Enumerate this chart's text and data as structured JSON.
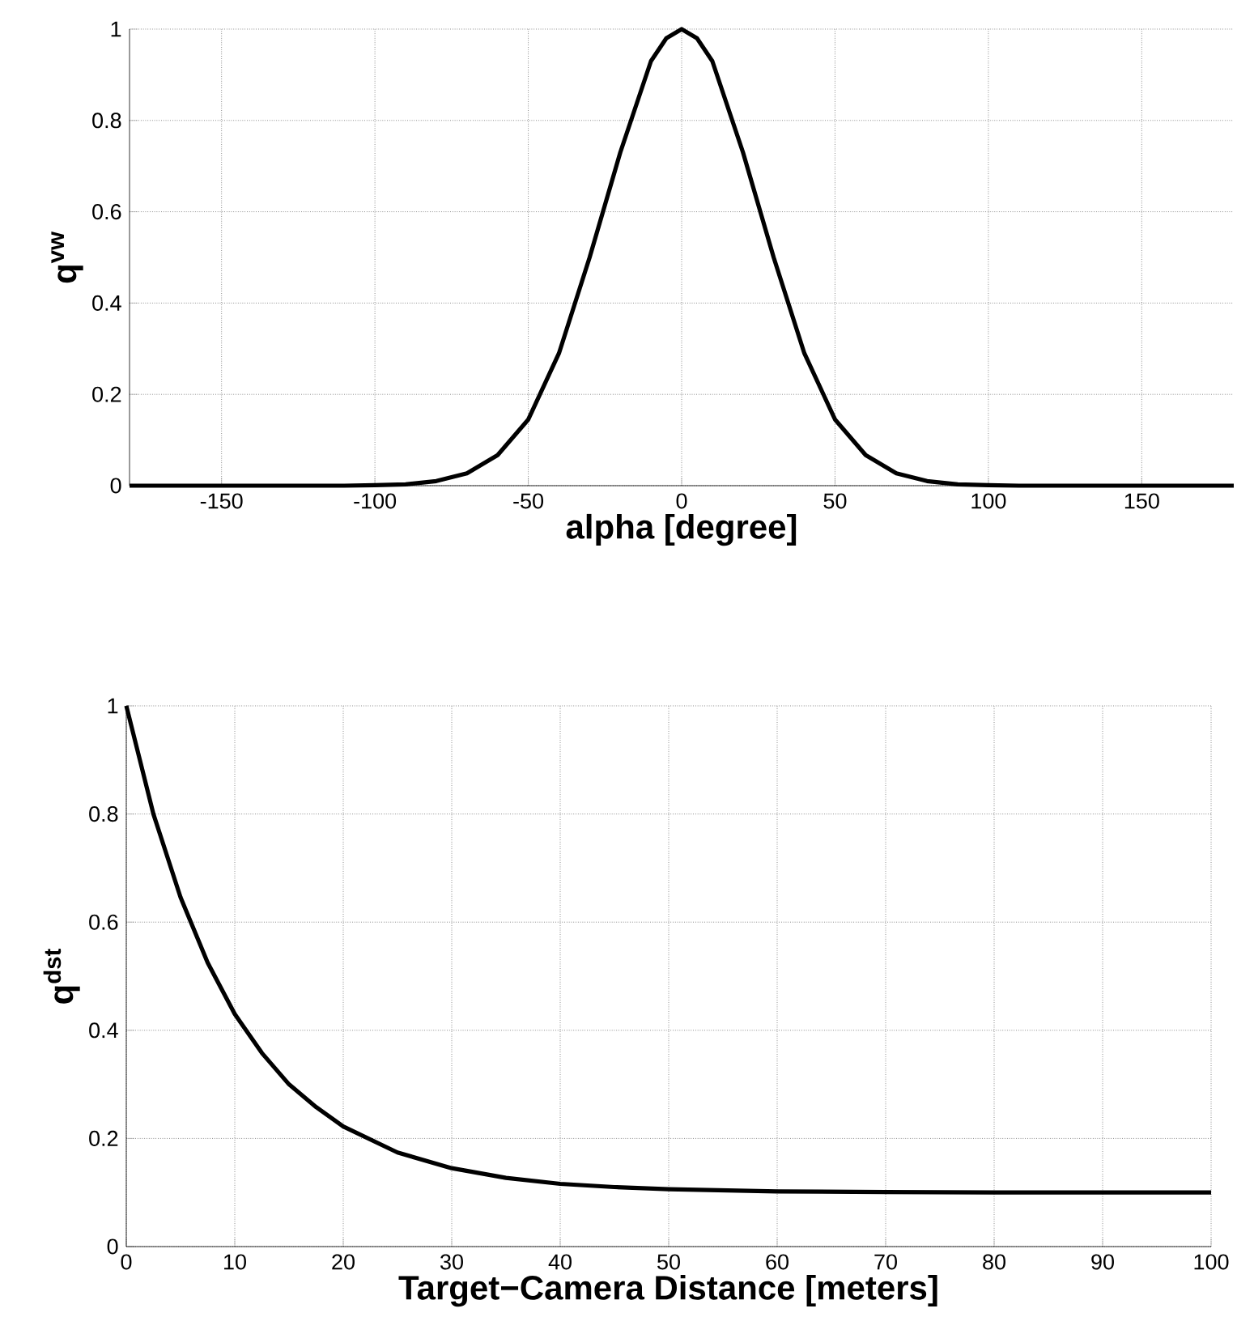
{
  "chart_data": [
    {
      "type": "line",
      "xlabel": "alpha [degree]",
      "ylabel": "q$^{vw}$",
      "color": "#000000",
      "grid": true,
      "x": [
        -180,
        -170,
        -160,
        -150,
        -140,
        -130,
        -120,
        -110,
        -100,
        -90,
        -80,
        -70,
        -60,
        -50,
        -40,
        -30,
        -20,
        -10,
        -5,
        0,
        5,
        10,
        20,
        30,
        40,
        50,
        60,
        70,
        80,
        90,
        100,
        110,
        120,
        130,
        140,
        150,
        160,
        170,
        180
      ],
      "values": [
        0,
        0,
        0,
        0,
        0,
        0,
        0,
        0,
        0.001,
        0.003,
        0.01,
        0.027,
        0.067,
        0.145,
        0.29,
        0.5,
        0.73,
        0.93,
        0.98,
        1,
        0.98,
        0.93,
        0.73,
        0.5,
        0.29,
        0.145,
        0.067,
        0.027,
        0.01,
        0.003,
        0.001,
        0,
        0,
        0,
        0,
        0,
        0,
        0,
        0
      ],
      "xlim": [
        -180,
        180
      ],
      "ylim": [
        0,
        1
      ],
      "xticks": [
        -150,
        -100,
        -50,
        0,
        50,
        100,
        150
      ],
      "yticks": [
        0,
        0.2,
        0.4,
        0.6,
        0.8,
        1
      ]
    },
    {
      "type": "line",
      "xlabel": "Target−Camera Distance [meters]",
      "ylabel": "q$^{dst}$",
      "color": "#000000",
      "grid": true,
      "x": [
        0,
        2.5,
        5,
        7.5,
        10,
        12.5,
        15,
        17.5,
        20,
        25,
        30,
        35,
        40,
        45,
        50,
        60,
        70,
        80,
        90,
        100
      ],
      "values": [
        1,
        0.8,
        0.646,
        0.525,
        0.43,
        0.358,
        0.3,
        0.258,
        0.222,
        0.174,
        0.145,
        0.127,
        0.116,
        0.11,
        0.106,
        0.102,
        0.101,
        0.1,
        0.1,
        0.1
      ],
      "xlim": [
        0,
        100
      ],
      "ylim": [
        0,
        1
      ],
      "xticks": [
        0,
        10,
        20,
        30,
        40,
        50,
        60,
        70,
        80,
        90,
        100
      ],
      "yticks": [
        0,
        0.2,
        0.4,
        0.6,
        0.8,
        1
      ]
    }
  ]
}
